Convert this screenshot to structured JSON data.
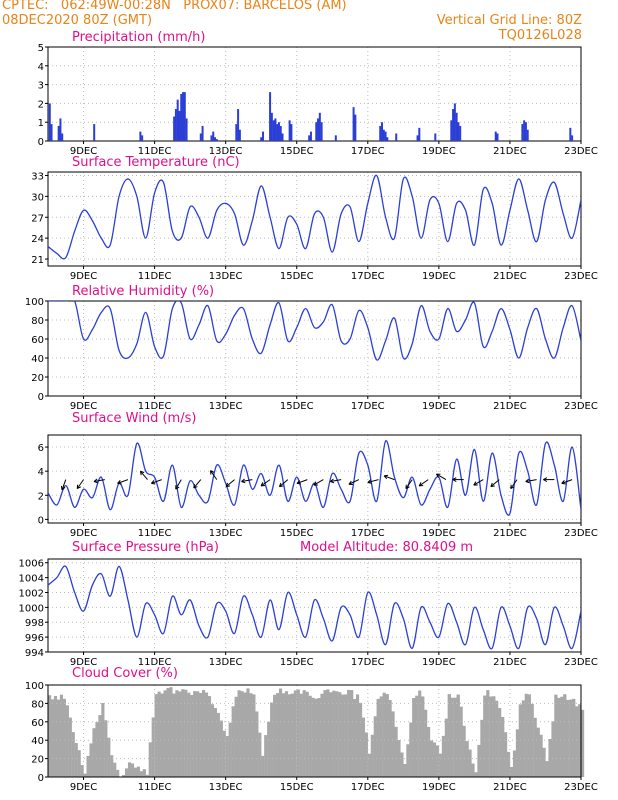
{
  "header": {
    "line1_left": "CPTEC:   062:49W-00:28N   PROX07: BARCELOS (AM)",
    "line2_left": "08DEC2020 80Z (GMT)",
    "line2_right": "Vertical Grid Line: 80Z",
    "line3_right": "TQ0126L028"
  },
  "colors": {
    "header": "#e88418",
    "title": "#e0108a",
    "series": "#2b3fd6",
    "cloud": "#a8a8a8"
  },
  "chart_data": [
    {
      "type": "bar",
      "title": "Precipitation (mm/h)",
      "ylim": [
        0,
        5
      ],
      "yticks": [
        0,
        1,
        2,
        3,
        4,
        5
      ],
      "xticks": [
        "9DEC",
        "11DEC",
        "13DEC",
        "15DEC",
        "17DEC",
        "19DEC",
        "21DEC",
        "23DEC"
      ],
      "x": [
        8.05,
        8.1,
        8.3,
        8.35,
        8.4,
        9.3,
        10.6,
        10.65,
        11.55,
        11.6,
        11.65,
        11.7,
        11.75,
        11.8,
        11.85,
        11.9,
        12.3,
        12.35,
        12.6,
        12.65,
        12.7,
        12.75,
        13.3,
        13.35,
        13.4,
        14.0,
        14.05,
        14.25,
        14.3,
        14.35,
        14.4,
        14.45,
        14.5,
        14.55,
        14.6,
        14.8,
        14.85,
        15.35,
        15.4,
        15.55,
        15.6,
        15.65,
        15.7,
        16.1,
        16.6,
        16.65,
        17.35,
        17.4,
        17.45,
        17.5,
        17.55,
        17.8,
        18.4,
        18.45,
        18.9,
        19.35,
        19.4,
        19.45,
        19.5,
        19.55,
        19.6,
        20.6,
        20.65,
        21.35,
        21.4,
        21.45,
        21.5,
        22.7,
        22.75
      ],
      "values": [
        2.0,
        0.9,
        0.8,
        1.2,
        0.4,
        0.9,
        0.5,
        0.3,
        1.3,
        1.7,
        2.2,
        1.6,
        2.5,
        2.6,
        2.6,
        1.2,
        0.4,
        0.8,
        0.3,
        0.5,
        0.2,
        0.1,
        0.9,
        1.7,
        0.6,
        0.2,
        0.5,
        2.6,
        1.5,
        1.1,
        1.2,
        0.9,
        1.0,
        0.8,
        0.4,
        1.1,
        0.9,
        0.3,
        0.5,
        1.0,
        1.2,
        1.5,
        1.0,
        0.3,
        1.8,
        1.4,
        0.8,
        1.0,
        0.6,
        0.5,
        0.2,
        0.4,
        0.3,
        0.7,
        0.4,
        1.1,
        1.7,
        2.0,
        1.5,
        1.0,
        0.8,
        0.5,
        0.4,
        0.9,
        1.1,
        1.0,
        0.6,
        0.7,
        0.3
      ]
    },
    {
      "type": "line",
      "title": "Surface Temperature (nC)",
      "ylim": [
        20,
        33.5
      ],
      "yticks": [
        21,
        24,
        27,
        30,
        33
      ],
      "xticks": [
        "9DEC",
        "11DEC",
        "13DEC",
        "15DEC",
        "17DEC",
        "19DEC",
        "21DEC",
        "23DEC"
      ],
      "x": [
        8.0,
        8.25,
        8.5,
        8.75,
        9.0,
        9.25,
        9.5,
        9.75,
        10.0,
        10.25,
        10.5,
        10.75,
        11.0,
        11.25,
        11.5,
        11.75,
        12.0,
        12.25,
        12.5,
        12.75,
        13.0,
        13.25,
        13.5,
        13.75,
        14.0,
        14.25,
        14.5,
        14.75,
        15.0,
        15.25,
        15.5,
        15.75,
        16.0,
        16.25,
        16.5,
        16.75,
        17.0,
        17.25,
        17.5,
        17.75,
        18.0,
        18.25,
        18.5,
        18.75,
        19.0,
        19.25,
        19.5,
        19.75,
        20.0,
        20.25,
        20.5,
        20.75,
        21.0,
        21.25,
        21.5,
        21.75,
        22.0,
        22.25,
        22.5,
        22.75,
        23.0
      ],
      "values": [
        22.8,
        21.8,
        21.2,
        25.0,
        28.0,
        26.5,
        24.0,
        23.0,
        30.0,
        32.5,
        30.0,
        24.0,
        30.5,
        32.0,
        25.0,
        24.0,
        28.5,
        27.0,
        24.0,
        28.0,
        29.0,
        27.5,
        23.0,
        26.5,
        31.5,
        27.0,
        22.5,
        27.0,
        26.0,
        22.5,
        27.5,
        27.0,
        22.0,
        27.5,
        28.5,
        23.5,
        29.0,
        33.0,
        27.0,
        24.0,
        32.5,
        30.0,
        24.0,
        29.5,
        29.0,
        23.5,
        29.0,
        28.0,
        23.0,
        31.0,
        29.0,
        23.0,
        28.0,
        32.5,
        28.0,
        23.5,
        29.5,
        32.0,
        27.5,
        24.0,
        29.5
      ]
    },
    {
      "type": "line",
      "title": "Relative Humidity (%)",
      "ylim": [
        0,
        100
      ],
      "yticks": [
        0,
        20,
        40,
        60,
        80,
        100
      ],
      "xticks": [
        "9DEC",
        "11DEC",
        "13DEC",
        "15DEC",
        "17DEC",
        "19DEC",
        "21DEC",
        "23DEC"
      ],
      "x": [
        8.0,
        8.25,
        8.5,
        8.75,
        9.0,
        9.25,
        9.5,
        9.75,
        10.0,
        10.25,
        10.5,
        10.75,
        11.0,
        11.25,
        11.5,
        11.75,
        12.0,
        12.25,
        12.5,
        12.75,
        13.0,
        13.25,
        13.5,
        13.75,
        14.0,
        14.25,
        14.5,
        14.75,
        15.0,
        15.25,
        15.5,
        15.75,
        16.0,
        16.25,
        16.5,
        16.75,
        17.0,
        17.25,
        17.5,
        17.75,
        18.0,
        18.25,
        18.5,
        18.75,
        19.0,
        19.25,
        19.5,
        19.75,
        20.0,
        20.25,
        20.5,
        20.75,
        21.0,
        21.25,
        21.5,
        21.75,
        22.0,
        22.25,
        22.5,
        22.75,
        23.0
      ],
      "values": [
        100,
        100,
        100,
        100,
        60,
        70,
        88,
        92,
        48,
        40,
        55,
        88,
        52,
        42,
        92,
        98,
        60,
        75,
        95,
        58,
        65,
        85,
        92,
        60,
        45,
        75,
        98,
        58,
        72,
        92,
        72,
        78,
        96,
        58,
        60,
        90,
        72,
        38,
        58,
        82,
        40,
        55,
        95,
        68,
        60,
        92,
        68,
        80,
        98,
        52,
        68,
        92,
        70,
        40,
        72,
        92,
        60,
        40,
        72,
        95,
        58
      ]
    },
    {
      "type": "line",
      "title": "Surface Wind (m/s)",
      "ylim": [
        -0.3,
        7
      ],
      "yticks": [
        0,
        2,
        4,
        6
      ],
      "xticks": [
        "9DEC",
        "11DEC",
        "13DEC",
        "15DEC",
        "17DEC",
        "19DEC",
        "21DEC",
        "23DEC"
      ],
      "x": [
        8.0,
        8.25,
        8.5,
        8.75,
        9.0,
        9.25,
        9.5,
        9.75,
        10.0,
        10.25,
        10.5,
        10.75,
        11.0,
        11.25,
        11.5,
        11.75,
        12.0,
        12.25,
        12.5,
        12.75,
        13.0,
        13.25,
        13.5,
        13.75,
        14.0,
        14.25,
        14.5,
        14.75,
        15.0,
        15.25,
        15.5,
        15.75,
        16.0,
        16.25,
        16.5,
        16.75,
        17.0,
        17.25,
        17.5,
        17.75,
        18.0,
        18.25,
        18.5,
        18.75,
        19.0,
        19.25,
        19.5,
        19.75,
        20.0,
        20.25,
        20.5,
        20.75,
        21.0,
        21.25,
        21.5,
        21.75,
        22.0,
        22.25,
        22.5,
        22.75,
        23.0
      ],
      "values": [
        2.2,
        1.2,
        2.8,
        1.0,
        2.5,
        1.8,
        3.5,
        0.8,
        3.0,
        2.0,
        6.3,
        4.0,
        3.5,
        1.5,
        4.5,
        1.0,
        3.2,
        2.0,
        1.5,
        4.5,
        3.0,
        1.2,
        4.5,
        2.5,
        3.8,
        2.0,
        4.5,
        1.5,
        3.5,
        1.5,
        3.0,
        1.0,
        3.8,
        2.5,
        1.5,
        5.5,
        4.5,
        1.5,
        6.5,
        3.5,
        1.8,
        3.5,
        1.2,
        2.5,
        3.5,
        1.0,
        5.0,
        2.0,
        5.8,
        1.5,
        5.5,
        2.0,
        0.5,
        5.5,
        4.0,
        1.2,
        6.3,
        4.5,
        1.5,
        6.0,
        0.8
      ],
      "arrows": [
        {
          "x": 8.5,
          "dir": 200
        },
        {
          "x": 9.0,
          "dir": 215
        },
        {
          "x": 9.6,
          "dir": 260
        },
        {
          "x": 10.25,
          "dir": 250
        },
        {
          "x": 10.8,
          "dir": 320
        },
        {
          "x": 11.2,
          "dir": 250
        },
        {
          "x": 11.75,
          "dir": 210
        },
        {
          "x": 12.3,
          "dir": 220
        },
        {
          "x": 12.75,
          "dir": 325
        },
        {
          "x": 13.25,
          "dir": 230
        },
        {
          "x": 13.75,
          "dir": 260
        },
        {
          "x": 14.25,
          "dir": 235
        },
        {
          "x": 14.75,
          "dir": 230
        },
        {
          "x": 15.3,
          "dir": 250
        },
        {
          "x": 15.75,
          "dir": 240
        },
        {
          "x": 16.25,
          "dir": 260
        },
        {
          "x": 16.75,
          "dir": 245
        },
        {
          "x": 17.3,
          "dir": 255
        },
        {
          "x": 17.75,
          "dir": 290
        },
        {
          "x": 18.25,
          "dir": 215
        },
        {
          "x": 18.7,
          "dir": 235
        },
        {
          "x": 19.2,
          "dir": 300
        },
        {
          "x": 19.7,
          "dir": 270
        },
        {
          "x": 20.25,
          "dir": 240
        },
        {
          "x": 20.7,
          "dir": 230
        },
        {
          "x": 21.2,
          "dir": 215
        },
        {
          "x": 21.75,
          "dir": 260
        },
        {
          "x": 22.25,
          "dir": 270
        },
        {
          "x": 22.75,
          "dir": 250
        }
      ]
    },
    {
      "type": "line",
      "title": "Surface Pressure (hPa)",
      "annotation": "Model Altitude: 80.8409 m",
      "ylim": [
        994,
        1006.5
      ],
      "yticks": [
        994,
        996,
        998,
        1000,
        1002,
        1004,
        1006
      ],
      "xticks": [
        "9DEC",
        "11DEC",
        "13DEC",
        "15DEC",
        "17DEC",
        "19DEC",
        "21DEC",
        "23DEC"
      ],
      "x": [
        8.0,
        8.25,
        8.5,
        8.75,
        9.0,
        9.25,
        9.5,
        9.75,
        10.0,
        10.25,
        10.5,
        10.75,
        11.0,
        11.25,
        11.5,
        11.75,
        12.0,
        12.25,
        12.5,
        12.75,
        13.0,
        13.25,
        13.5,
        13.75,
        14.0,
        14.25,
        14.5,
        14.75,
        15.0,
        15.25,
        15.5,
        15.75,
        16.0,
        16.25,
        16.5,
        16.75,
        17.0,
        17.25,
        17.5,
        17.75,
        18.0,
        18.25,
        18.5,
        18.75,
        19.0,
        19.25,
        19.5,
        19.75,
        20.0,
        20.25,
        20.5,
        20.75,
        21.0,
        21.25,
        21.5,
        21.75,
        22.0,
        22.25,
        22.5,
        22.75,
        23.0
      ],
      "values": [
        1003.0,
        1004.0,
        1005.5,
        1002.0,
        999.5,
        1003.0,
        1004.5,
        1001.5,
        1005.5,
        1001.0,
        996.0,
        1000.5,
        999.0,
        996.5,
        1001.5,
        999.0,
        1001.0,
        997.5,
        996.0,
        1000.5,
        999.5,
        996.5,
        1001.5,
        999.0,
        996.0,
        1001.0,
        997.0,
        1002.0,
        999.0,
        996.0,
        1001.0,
        998.5,
        995.5,
        1000.0,
        999.0,
        996.0,
        1002.0,
        999.0,
        995.0,
        1000.5,
        998.5,
        994.5,
        1000.0,
        998.0,
        996.0,
        1000.5,
        998.0,
        995.0,
        1000.0,
        997.0,
        994.5,
        1000.0,
        997.5,
        994.5,
        1000.0,
        998.5,
        995.0,
        1000.0,
        997.5,
        994.5,
        999.5
      ]
    },
    {
      "type": "area",
      "title": "Cloud Cover (%)",
      "ylim": [
        0,
        100
      ],
      "yticks": [
        0,
        20,
        40,
        60,
        80,
        100
      ],
      "xticks": [
        "9DEC",
        "11DEC",
        "13DEC",
        "15DEC",
        "17DEC",
        "19DEC",
        "21DEC",
        "23DEC"
      ],
      "x": [
        8.0,
        8.25,
        8.5,
        8.75,
        9.0,
        9.25,
        9.5,
        9.75,
        10.0,
        10.25,
        10.5,
        10.75,
        11.0,
        11.25,
        11.5,
        11.75,
        12.0,
        12.25,
        12.5,
        12.75,
        13.0,
        13.25,
        13.5,
        13.75,
        14.0,
        14.25,
        14.5,
        14.75,
        15.0,
        15.25,
        15.5,
        15.75,
        16.0,
        16.25,
        16.5,
        16.75,
        17.0,
        17.25,
        17.5,
        17.75,
        18.0,
        18.25,
        18.5,
        18.75,
        19.0,
        19.25,
        19.5,
        19.75,
        20.0,
        20.25,
        20.5,
        20.75,
        21.0,
        21.25,
        21.5,
        21.75,
        22.0,
        22.25,
        22.5,
        22.75,
        23.0
      ],
      "values": [
        90,
        92,
        85,
        40,
        10,
        55,
        85,
        30,
        5,
        20,
        15,
        10,
        95,
        98,
        98,
        97,
        95,
        96,
        95,
        70,
        45,
        95,
        98,
        96,
        30,
        85,
        98,
        95,
        96,
        97,
        92,
        95,
        96,
        97,
        95,
        88,
        30,
        92,
        96,
        60,
        15,
        92,
        95,
        45,
        30,
        90,
        96,
        40,
        10,
        95,
        95,
        70,
        15,
        80,
        96,
        60,
        20,
        92,
        95,
        85,
        80
      ]
    }
  ]
}
